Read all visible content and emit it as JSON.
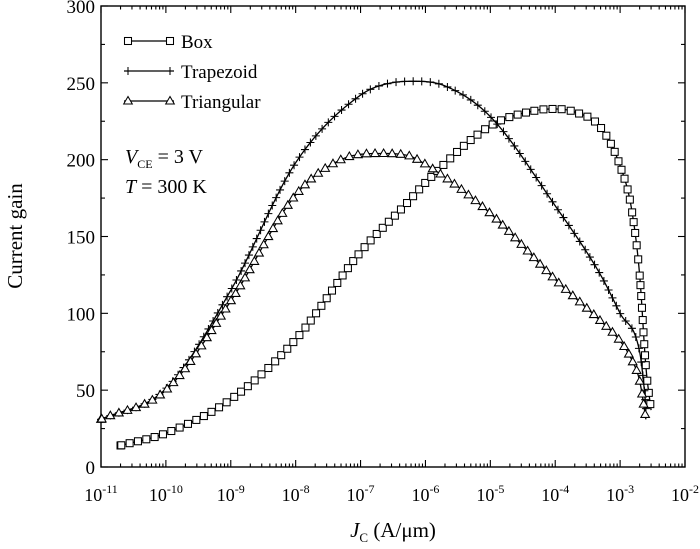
{
  "chart_data": {
    "type": "line",
    "title": "",
    "xlabel": "J",
    "xlabel_sub": "C",
    "xlabel_unit": " (A/μm)",
    "ylabel": "Current gain",
    "x_scale": "log",
    "xlim": [
      1e-11,
      0.01
    ],
    "ylim": [
      0,
      300
    ],
    "grid": false,
    "legend_position": "top-left",
    "y_ticks": [
      "0",
      "50",
      "100",
      "150",
      "200",
      "250",
      "300"
    ],
    "x_ticks": [
      {
        "base": "10",
        "exp": "-11"
      },
      {
        "base": "10",
        "exp": "-10"
      },
      {
        "base": "10",
        "exp": "-9"
      },
      {
        "base": "10",
        "exp": "-8"
      },
      {
        "base": "10",
        "exp": "-7"
      },
      {
        "base": "10",
        "exp": "-6"
      },
      {
        "base": "10",
        "exp": "-5"
      },
      {
        "base": "10",
        "exp": "-4"
      },
      {
        "base": "10",
        "exp": "-3"
      },
      {
        "base": "10",
        "exp": "-2"
      }
    ],
    "annotations": {
      "vce_symbol": "V",
      "vce_sub": "CE",
      "vce_value": " = 3 V",
      "t_symbol": "T",
      "t_value": " = 300 K"
    },
    "series": [
      {
        "name": "Box",
        "marker": "square",
        "x": [
          2e-11,
          1e-10,
          1e-09,
          1e-08,
          1e-07,
          5e-07,
          1e-06,
          1e-05,
          5e-05,
          0.0001,
          0.0002,
          0.0005,
          0.001,
          0.0015,
          0.002,
          0.0025,
          0.003
        ],
        "y": [
          14,
          22,
          44,
          83,
          140,
          171,
          185,
          222,
          232,
          233,
          231,
          221,
          196,
          168,
          125,
          65,
          37
        ]
      },
      {
        "name": "Trapezoid",
        "marker": "plus",
        "x": [
          1e-11,
          1e-10,
          1e-09,
          1e-08,
          1e-07,
          3e-07,
          7e-07,
          2e-06,
          1e-05,
          0.0001,
          0.0005,
          0.001,
          0.002,
          0.0023,
          0.0025
        ],
        "y": [
          31,
          51,
          115,
          198,
          242,
          250,
          251,
          248,
          228,
          170,
          125,
          100,
          75,
          55,
          38
        ]
      },
      {
        "name": "Triangular",
        "marker": "triangle",
        "x": [
          1e-11,
          1e-10,
          1e-09,
          1e-08,
          5e-08,
          2e-07,
          5e-07,
          1e-06,
          1e-05,
          0.0001,
          0.0005,
          0.001,
          0.0015,
          0.002,
          0.0025
        ],
        "y": [
          31,
          50,
          108,
          177,
          200,
          204,
          203,
          197,
          165,
          122,
          95,
          82,
          70,
          56,
          31
        ]
      }
    ]
  }
}
